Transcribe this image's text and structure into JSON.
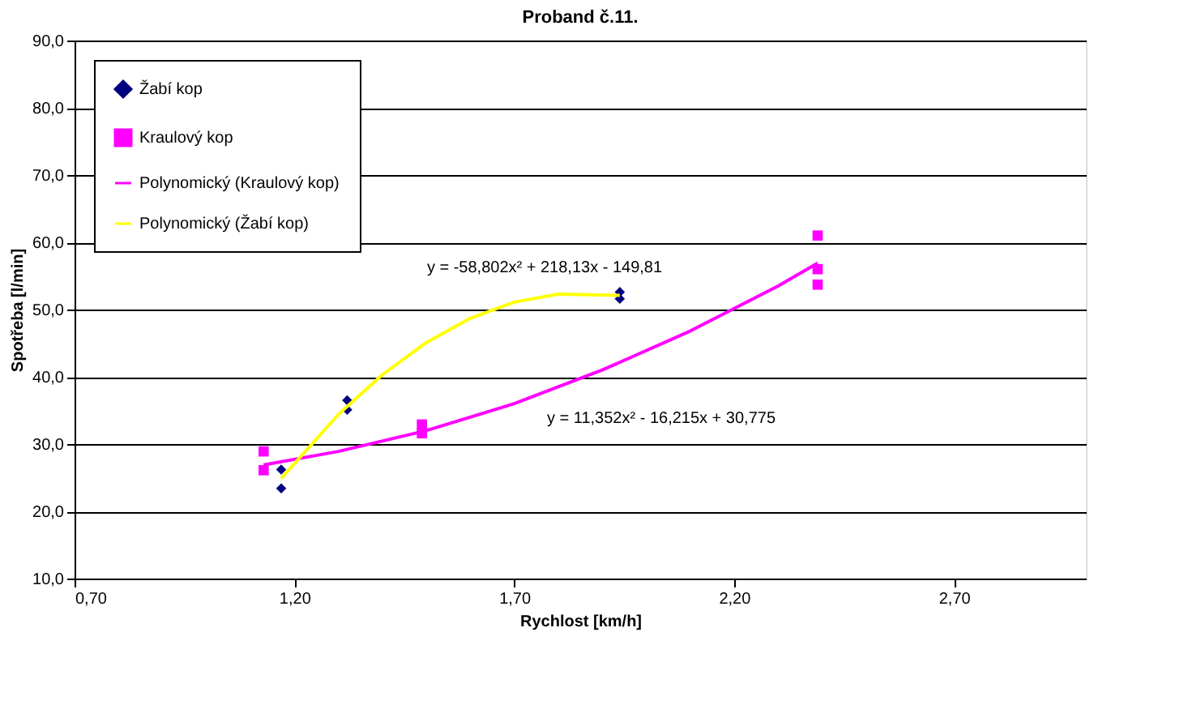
{
  "chart_data": {
    "type": "scatter",
    "title": "Proband č.11.",
    "xlabel": "Rychlost [km/h]",
    "ylabel": "Spotřeba [l/min]",
    "xlim": [
      0.7,
      3.0
    ],
    "ylim": [
      10,
      90
    ],
    "xticks": [
      {
        "value": 0.7,
        "label": "0,70"
      },
      {
        "value": 1.2,
        "label": "1,20"
      },
      {
        "value": 1.7,
        "label": "1,70"
      },
      {
        "value": 2.2,
        "label": "2,20"
      },
      {
        "value": 2.7,
        "label": "2,70"
      }
    ],
    "yticks": [
      {
        "value": 10,
        "label": "10,0"
      },
      {
        "value": 20,
        "label": "20,0"
      },
      {
        "value": 30,
        "label": "30,0"
      },
      {
        "value": 40,
        "label": "40,0"
      },
      {
        "value": 50,
        "label": "50,0"
      },
      {
        "value": 60,
        "label": "60,0"
      },
      {
        "value": 70,
        "label": "70,0"
      },
      {
        "value": 80,
        "label": "80,0"
      },
      {
        "value": 90,
        "label": "90,0"
      }
    ],
    "grid": "y",
    "legend": "top left",
    "series": [
      {
        "name": "Žabí kop",
        "marker": "diamond",
        "color": "#000080",
        "x": [
          1.17,
          1.17,
          1.32,
          1.32,
          1.94,
          1.94
        ],
        "values": [
          26.2,
          23.4,
          36.5,
          35.1,
          52.6,
          51.6
        ]
      },
      {
        "name": "Kraulový kop",
        "marker": "square",
        "color": "#ff00ff",
        "x": [
          1.13,
          1.13,
          1.49,
          1.49,
          2.39,
          2.39,
          2.39
        ],
        "values": [
          28.9,
          26.1,
          32.9,
          31.6,
          61.0,
          56.0,
          53.7
        ]
      },
      {
        "name": "Polynomický (Kraulový kop)",
        "type": "line",
        "marker": "none",
        "color": "#ff00ff",
        "x": [
          1.13,
          1.3,
          1.5,
          1.7,
          1.9,
          2.1,
          2.3,
          2.39
        ],
        "values": [
          26.9,
          28.9,
          32.0,
          36.0,
          41.0,
          46.8,
          53.5,
          56.9
        ]
      },
      {
        "name": "Polynomický (Žabí kop)",
        "type": "line",
        "marker": "none",
        "color": "#ffff00",
        "x": [
          1.17,
          1.3,
          1.4,
          1.5,
          1.6,
          1.7,
          1.8,
          1.94
        ],
        "values": [
          24.9,
          34.4,
          40.3,
          45.1,
          48.7,
          51.1,
          52.3,
          52.1
        ]
      }
    ],
    "annotations": [
      "y = -58,802x² + 218,13x - 149,81",
      "y = 11,352x² - 16,215x + 30,775"
    ]
  }
}
